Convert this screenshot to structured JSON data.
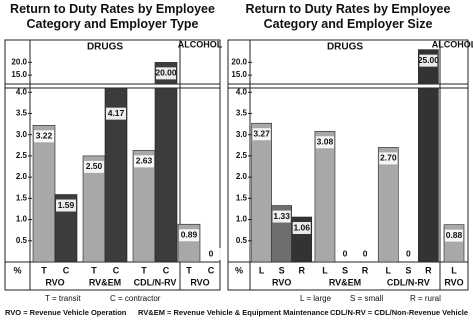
{
  "chart_data": [
    {
      "type": "bar",
      "title": "Return to Duty Rates by Employee Category and Employer Type",
      "sections": [
        "DRUGS",
        "ALCOHOL"
      ],
      "categories": [
        "RVO",
        "RV&EM",
        "CDL/N-RV",
        "RVO"
      ],
      "series": [
        {
          "name": "T",
          "color": "#a8a8a8",
          "values": [
            3.22,
            2.5,
            2.63,
            0.89
          ],
          "value_labels": [
            "3.22",
            "2.50",
            "2.63",
            "0.89"
          ]
        },
        {
          "name": "C",
          "color": "#3c3c3c",
          "values": [
            1.59,
            4.17,
            20.0,
            0
          ],
          "value_labels": [
            "1.59",
            "4.17",
            "20.00",
            "0"
          ]
        }
      ],
      "ylabel": "%",
      "ylim": [
        0,
        4.1
      ],
      "yticks": [
        0.5,
        {
          "value": 1,
          "label": "1.0"
        },
        1.5,
        {
          "value": 2,
          "label": "2.0"
        },
        2.5,
        {
          "value": 3,
          "label": "3.0"
        },
        3.5,
        {
          "value": 4,
          "label": "4.0"
        }
      ],
      "ylim_break": [
        11.5,
        28
      ],
      "yticks_break": [
        {
          "value": 15,
          "label": "15.0"
        },
        {
          "value": 20,
          "label": "20.0"
        }
      ],
      "notes": [
        "T = transit",
        "C = contractor"
      ]
    },
    {
      "type": "bar",
      "title": "Return to Duty Rates by Employee Category and Employer Size",
      "sections": [
        "DRUGS",
        "ALCOHOL"
      ],
      "categories": [
        "RVO",
        "RV&EM",
        "CDL/N-RV",
        "RVO"
      ],
      "series": [
        {
          "name": "L",
          "color": "#a8a8a8",
          "values": [
            3.27,
            3.08,
            2.7,
            0.88
          ],
          "value_labels": [
            "3.27",
            "3.08",
            "2.70",
            "0.88"
          ]
        },
        {
          "name": "S",
          "color": "#6e6e6e",
          "values": [
            1.33,
            0,
            0,
            null
          ],
          "value_labels": [
            "1.33",
            "0",
            "0",
            null
          ]
        },
        {
          "name": "R",
          "color": "#333333",
          "values": [
            1.06,
            0,
            25.0,
            null
          ],
          "value_labels": [
            "1.06",
            "0",
            "25.00",
            null
          ]
        }
      ],
      "ylabel": "%",
      "ylim": [
        0,
        4.1
      ],
      "yticks": [
        0.5,
        {
          "value": 1,
          "label": "1.0"
        },
        1.5,
        {
          "value": 2,
          "label": "2.0"
        },
        2.5,
        {
          "value": 3,
          "label": "3.0"
        },
        3.5,
        {
          "value": 4,
          "label": "4.0"
        }
      ],
      "ylim_break": [
        11.5,
        28
      ],
      "yticks_break": [
        {
          "value": 15,
          "label": "15.0"
        },
        {
          "value": 20,
          "label": "20.0"
        }
      ],
      "notes": [
        "L = large",
        "S = small",
        "R = rural"
      ]
    }
  ],
  "footnotes": [
    "RVO = Revenue Vehicle Operation",
    "RV&EM = Revenue Vehicle & Equipment Maintenance",
    "CDL/N-RV = CDL/Non-Revenue Vehicle"
  ]
}
